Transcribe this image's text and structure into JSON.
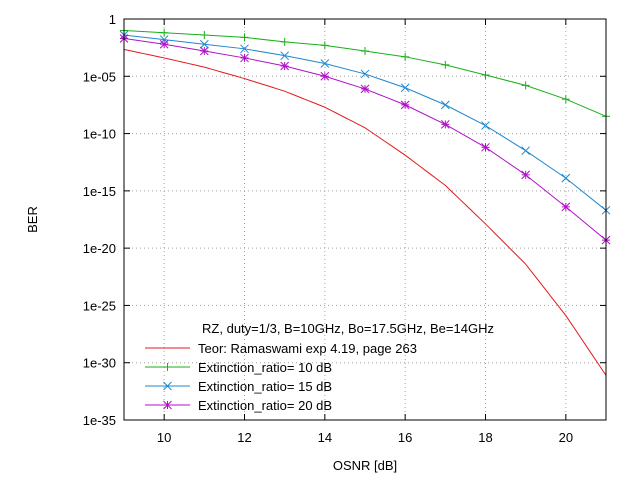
{
  "chart_data": {
    "type": "line",
    "title": "",
    "xlabel": "OSNR [dB]",
    "ylabel": "BER",
    "xlim": [
      9,
      21
    ],
    "ylim": [
      1e-35,
      1
    ],
    "y_scale": "log",
    "grid": true,
    "legend_position": "bottom-left",
    "legend_title": "RZ, duty=1/3, B=10GHz, Bo=17.5GHz, Be=14GHz",
    "x_ticks": [
      10,
      12,
      14,
      16,
      18,
      20
    ],
    "x_tick_labels": [
      "10",
      "12",
      "14",
      "16",
      "18",
      "20"
    ],
    "y_ticks": [
      1,
      1e-05,
      1e-10,
      1e-15,
      1e-20,
      1e-25,
      1e-30,
      1e-35
    ],
    "y_tick_labels": [
      "1",
      "1e-05",
      "1e-10",
      "1e-15",
      "1e-20",
      "1e-25",
      "1e-30",
      "1e-35"
    ],
    "series": [
      {
        "name": "Teor: Ramaswami exp 4.19, page 263",
        "color": "#e41a1c",
        "marker": "none",
        "x": [
          9,
          10,
          11,
          12,
          13,
          14,
          15,
          16,
          17,
          18,
          19,
          20,
          21
        ],
        "y": [
          0.0022,
          0.0004,
          6.3e-05,
          6.3e-06,
          5e-07,
          2e-08,
          3.2e-10,
          1.3e-12,
          3e-15,
          1.3e-18,
          4e-22,
          1.3e-26,
          7.9e-32
        ]
      },
      {
        "name": "Extinction_ratio= 10 dB",
        "color": "#1aaf1a",
        "marker": "plus",
        "x": [
          9,
          10,
          11,
          12,
          13,
          14,
          15,
          16,
          17,
          18,
          19,
          20,
          21
        ],
        "y": [
          0.1,
          0.063,
          0.04,
          0.025,
          0.01,
          0.005,
          0.0016,
          0.0005,
          0.0001,
          1.3e-05,
          1.6e-06,
          1e-07,
          3.2e-09
        ]
      },
      {
        "name": "Extinction_ratio= 15 dB",
        "color": "#1e88d0",
        "marker": "cross",
        "x": [
          9,
          10,
          11,
          12,
          13,
          14,
          15,
          16,
          17,
          18,
          19,
          20,
          21
        ],
        "y": [
          0.04,
          0.016,
          0.0063,
          0.0025,
          0.00063,
          0.00013,
          1.6e-05,
          1e-06,
          3.2e-08,
          5e-10,
          3.2e-12,
          1.3e-14,
          2e-17
        ]
      },
      {
        "name": "Extinction_ratio= 20 dB",
        "color": "#b010c8",
        "marker": "star",
        "x": [
          9,
          10,
          11,
          12,
          13,
          14,
          15,
          16,
          17,
          18,
          19,
          20,
          21
        ],
        "y": [
          0.02,
          0.0063,
          0.0016,
          0.0004,
          7.9e-05,
          1e-05,
          7.9e-07,
          3.2e-08,
          6.3e-10,
          6.3e-12,
          2.5e-14,
          4e-17,
          5e-20
        ]
      }
    ]
  }
}
